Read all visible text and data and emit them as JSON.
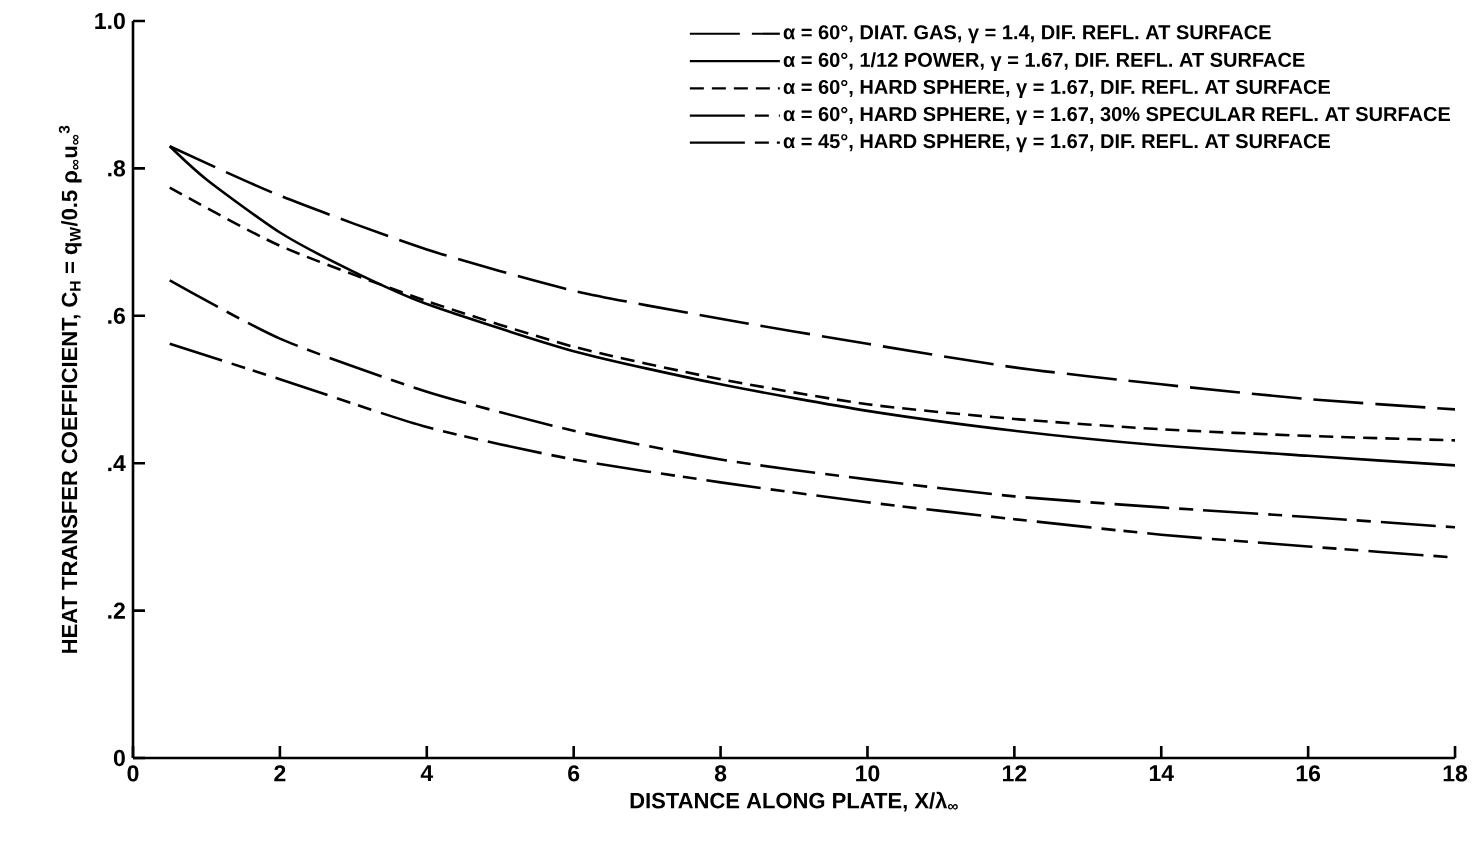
{
  "chart_data": {
    "type": "line",
    "xlabel": "DISTANCE ALONG PLATE, X/λ$_{∞}$",
    "ylabel": "HEAT TRANSFER COEFFICIENT, C$_{H}$ = q$_{W}$/0.5 ρ$_{∞}$u$_{∞}$$^{3}$",
    "x": [
      0.5,
      2,
      4,
      6,
      8,
      10,
      12,
      14,
      16,
      18
    ],
    "series": [
      {
        "name": "α = 60°, DIAT. GAS, γ = 1.4, DIF. REFL. AT SURFACE",
        "color": "#000000",
        "line_style": "long dashed",
        "values": [
          0.83,
          0.763,
          0.69,
          0.634,
          0.596,
          0.562,
          0.53,
          0.507,
          0.487,
          0.473
        ]
      },
      {
        "name": "α = 60°, 1/12 POWER, γ = 1.67, DIF. REFL. AT SURFACE",
        "color": "#000000",
        "line_style": "solid",
        "x": [
          0.5,
          1,
          2,
          3,
          4,
          6,
          8,
          10,
          12,
          14,
          16,
          18
        ],
        "values": [
          0.83,
          0.785,
          0.713,
          0.66,
          0.616,
          0.552,
          0.507,
          0.471,
          0.444,
          0.424,
          0.41,
          0.397
        ]
      },
      {
        "name": "α = 60°, HARD SPHERE, γ = 1.67, DIF. REFL. AT SURFACE",
        "color": "#000000",
        "line_style": "dashed",
        "values": [
          0.774,
          0.695,
          0.62,
          0.558,
          0.514,
          0.48,
          0.46,
          0.446,
          0.437,
          0.431
        ]
      },
      {
        "name": "α = 60°, HARD SPHERE, γ = 1.67, 30% SPECULAR REFL. AT SURFACE",
        "color": "#000000",
        "line_style": "long dash short",
        "values": [
          0.648,
          0.569,
          0.497,
          0.444,
          0.405,
          0.378,
          0.355,
          0.34,
          0.327,
          0.313
        ]
      },
      {
        "name": "α = 45°, HARD SPHERE, γ = 1.67, DIF. REFL. AT SURFACE",
        "color": "#000000",
        "line_style": "long dash two short",
        "values": [
          0.562,
          0.514,
          0.449,
          0.405,
          0.374,
          0.347,
          0.324,
          0.303,
          0.287,
          0.272
        ]
      }
    ],
    "xlim": [
      0,
      18
    ],
    "ylim": [
      0,
      1.0
    ],
    "xticks": [
      0,
      2,
      4,
      6,
      8,
      10,
      12,
      14,
      16,
      18
    ],
    "yticks": [
      {
        "value": 0,
        "label": "0"
      },
      {
        "value": 0.2,
        "label": ".2"
      },
      {
        "value": 0.4,
        "label": ".4"
      },
      {
        "value": 0.6,
        "label": ".6"
      },
      {
        "value": 0.8,
        "label": ".8"
      },
      {
        "value": 1.0,
        "label": "1.0"
      }
    ],
    "grid": false,
    "legend": "top right",
    "marker": "none"
  }
}
